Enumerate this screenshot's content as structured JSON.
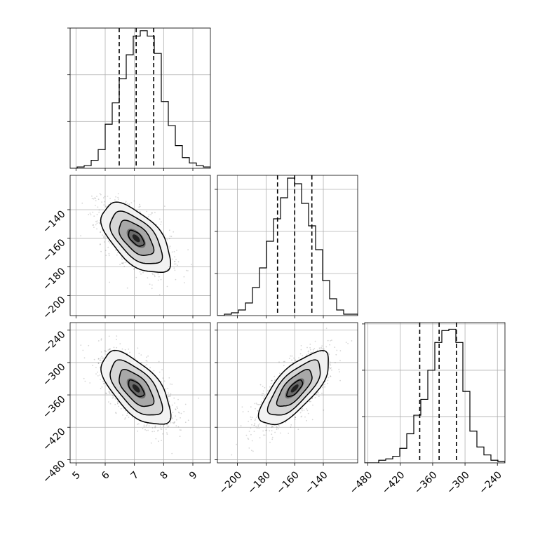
{
  "chart_data": {
    "type": "corner",
    "grid": true,
    "quantile_lines": "dashed",
    "panels": [
      {
        "id": "hist-p0",
        "type": "histogram",
        "row": 0,
        "col": 0,
        "x": {
          "range": [
            4.8,
            9.6
          ],
          "ticks": [
            5,
            6,
            7,
            8,
            9
          ],
          "tick_labels": []
        },
        "y": {
          "range": [
            0,
            1.05
          ],
          "ticks": [
            0.35,
            0.7,
            1.05
          ],
          "tick_labels": []
        },
        "bins": {
          "start": 4.8,
          "width": 0.24,
          "values": [
            0,
            0.01,
            0.02,
            0.06,
            0.14,
            0.33,
            0.49,
            0.67,
            0.85,
            0.99,
            1.03,
            0.99,
            0.86,
            0.5,
            0.32,
            0.17,
            0.08,
            0.04,
            0.02,
            0.01
          ]
        },
        "quantiles": [
          6.48,
          7.06,
          7.66
        ]
      },
      {
        "id": "hist-p1",
        "type": "histogram",
        "row": 1,
        "col": 1,
        "x": {
          "range": [
            -214,
            -116
          ],
          "ticks": [
            -200,
            -180,
            -160,
            -140
          ],
          "tick_labels": []
        },
        "y": {
          "range": [
            0,
            1.0
          ],
          "ticks": [
            0.3,
            0.6,
            0.9
          ],
          "tick_labels": []
        },
        "bins": {
          "start": -214,
          "width": 4.9,
          "values": [
            0,
            0.01,
            0.02,
            0.04,
            0.09,
            0.2,
            0.34,
            0.53,
            0.69,
            0.84,
            0.98,
            0.94,
            0.8,
            0.64,
            0.47,
            0.25,
            0.12,
            0.04,
            0.01,
            0.01
          ]
        },
        "quantiles": [
          -172,
          -160,
          -148
        ]
      },
      {
        "id": "hist-p2",
        "type": "histogram",
        "row": 2,
        "col": 2,
        "x": {
          "range": [
            -486,
            -226
          ],
          "ticks": [
            -480,
            -420,
            -360,
            -300,
            -240
          ],
          "tick_labels": [
            "−480",
            "−420",
            "−360",
            "−300",
            "−240"
          ]
        },
        "y": {
          "range": [
            0,
            1.06
          ],
          "ticks": [
            0.35,
            0.7,
            1.05
          ],
          "tick_labels": []
        },
        "bins": {
          "start": -486,
          "width": 13,
          "values": [
            0,
            0,
            0.02,
            0.03,
            0.05,
            0.11,
            0.22,
            0.36,
            0.48,
            0.7,
            0.91,
            1.0,
            1.01,
            0.91,
            0.54,
            0.24,
            0.12,
            0.06,
            0.02,
            0.01
          ]
        },
        "quantiles": [
          -384,
          -348,
          -316
        ]
      },
      {
        "id": "joint-p0-p1",
        "type": "density2d",
        "row": 1,
        "col": 0,
        "x": {
          "range": [
            4.8,
            9.6
          ],
          "ticks": [
            5,
            6,
            7,
            8,
            9
          ],
          "tick_labels": []
        },
        "y": {
          "range": [
            -214,
            -116
          ],
          "ticks": [
            -200,
            -180,
            -160,
            -140
          ],
          "tick_labels": [
            "−200",
            "−180",
            "−160",
            "−140"
          ]
        },
        "mean": [
          7.06,
          -160
        ],
        "sigma": [
          0.59,
          12.2
        ],
        "rho": -0.58
      },
      {
        "id": "joint-p0-p2",
        "type": "density2d",
        "row": 2,
        "col": 0,
        "x": {
          "range": [
            4.8,
            9.6
          ],
          "ticks": [
            5,
            6,
            7,
            8,
            9
          ],
          "tick_labels": [
            "5",
            "6",
            "7",
            "8",
            "9"
          ]
        },
        "y": {
          "range": [
            -486,
            -226
          ],
          "ticks": [
            -480,
            -420,
            -360,
            -300,
            -240
          ],
          "tick_labels": [
            "−480",
            "−420",
            "−360",
            "−300",
            "−240"
          ]
        },
        "mean": [
          7.06,
          -348
        ],
        "sigma": [
          0.59,
          34
        ],
        "rho": -0.62
      },
      {
        "id": "joint-p1-p2",
        "type": "density2d",
        "row": 2,
        "col": 1,
        "x": {
          "range": [
            -214,
            -116
          ],
          "ticks": [
            -200,
            -180,
            -160,
            -140
          ],
          "tick_labels": [
            "−200",
            "−180",
            "−160",
            "−140"
          ]
        },
        "y": {
          "range": [
            -486,
            -226
          ],
          "ticks": [
            -480,
            -420,
            -360,
            -300,
            -240
          ],
          "tick_labels": []
        },
        "mean": [
          -160,
          -348
        ],
        "sigma": [
          12.2,
          34
        ],
        "rho": 0.72
      }
    ]
  }
}
